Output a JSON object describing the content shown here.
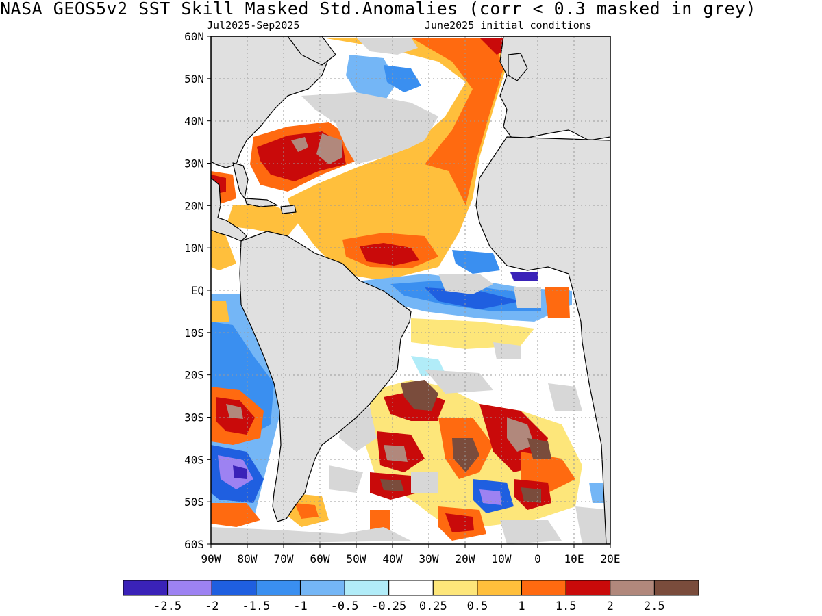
{
  "title": "NASA_GEOS5v2  SST Skill Masked Std.Anomalies (corr < 0.3 masked in grey)",
  "subtitle_left": "Jul2025-Sep2025",
  "subtitle_right": "June2025 initial conditions",
  "lat_labels": [
    "60N",
    "50N",
    "40N",
    "30N",
    "20N",
    "10N",
    "EQ",
    "10S",
    "20S",
    "30S",
    "40S",
    "50S",
    "60S"
  ],
  "lon_labels": [
    "90W",
    "80W",
    "70W",
    "60W",
    "50W",
    "40W",
    "30W",
    "20W",
    "10W",
    "0",
    "10E",
    "20E"
  ],
  "colorbar": {
    "colors": [
      "#3a22b8",
      "#9d82f2",
      "#1f5fe0",
      "#3a8ff0",
      "#74b6f6",
      "#b1ecf8",
      "#ffffff",
      "#fde67a",
      "#ffbf3c",
      "#ff6a10",
      "#c90a0a",
      "#b1887c",
      "#7a4c3c"
    ],
    "tick_labels": [
      "-2.5",
      "-2",
      "-1.5",
      "-1",
      "-0.5",
      "-0.25",
      "0.25",
      "0.5",
      "1",
      "1.5",
      "2",
      "2.5"
    ]
  },
  "colors": {
    "land": "#e0e0e0",
    "mask_grey": "#d7d7d7"
  }
}
